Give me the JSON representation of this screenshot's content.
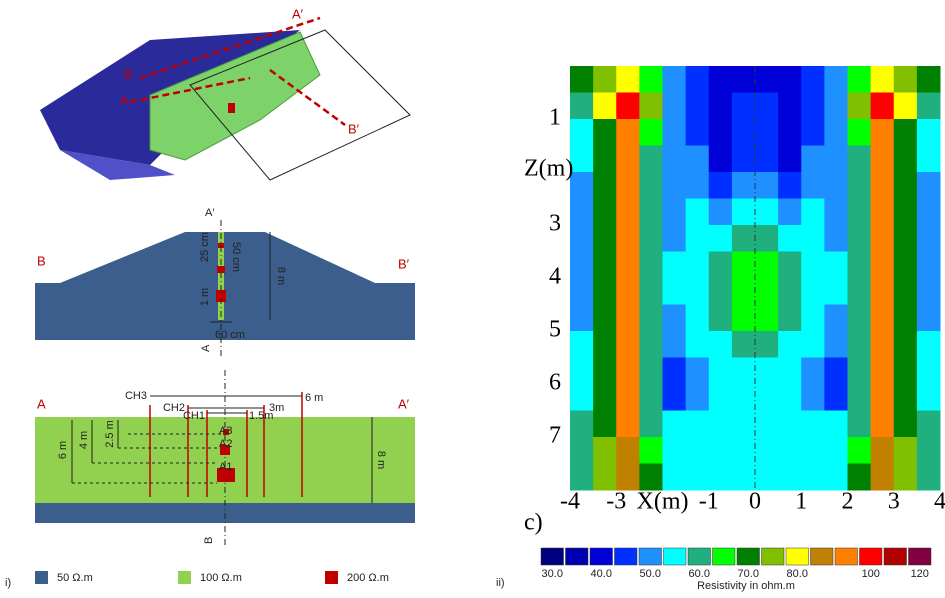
{
  "model_3d": {
    "a_prime": "A′",
    "b": "B",
    "a": "A",
    "b_prime": "B′"
  },
  "section_bb": {
    "left": "B",
    "right": "B′",
    "top": "A′",
    "bottom": "A",
    "spacing": "25 cm",
    "width": "50 cm",
    "height": "8 m",
    "step": "1 m",
    "base": "60 cm"
  },
  "section_aa": {
    "left": "A",
    "right": "A′",
    "bottom": "B",
    "channels": [
      "CH3",
      "CH2",
      "CH1"
    ],
    "spans": [
      "6 m",
      "3m",
      "1.5m"
    ],
    "depths": [
      "6 m",
      "4 m",
      "2.5 m"
    ],
    "anomalies": [
      "A3",
      "A2",
      "A1"
    ],
    "height": "8 m"
  },
  "legend": [
    {
      "color": "#3b5e8c",
      "label": "50 Ω.m"
    },
    {
      "color": "#92d050",
      "label": "100 Ω.m"
    },
    {
      "color": "#c00000",
      "label": "200 Ω.m"
    }
  ],
  "panel_labels": {
    "i": "i)",
    "ii": "ii)",
    "c": "c)"
  },
  "chart_data": {
    "type": "heatmap",
    "xlabel": "X(m)",
    "ylabel": "Z(m)",
    "x": [
      -3.75,
      -3.25,
      -2.75,
      -2.25,
      -1.75,
      -1.25,
      -0.75,
      -0.25,
      0.25,
      0.75,
      1.25,
      1.75,
      2.25,
      2.75,
      3.25,
      3.75
    ],
    "z": [
      0.25,
      0.75,
      1.25,
      1.75,
      2.25,
      2.75,
      3.25,
      3.75,
      4.25,
      4.75,
      5.25,
      5.75,
      6.25,
      6.75,
      7.25,
      7.75
    ],
    "values": [
      [
        70,
        75,
        80,
        65,
        50,
        45,
        40,
        40,
        40,
        40,
        45,
        50,
        65,
        80,
        75,
        70
      ],
      [
        60,
        80,
        100,
        75,
        50,
        45,
        40,
        45,
        45,
        40,
        45,
        50,
        75,
        100,
        80,
        60
      ],
      [
        55,
        70,
        90,
        65,
        50,
        45,
        40,
        45,
        45,
        40,
        45,
        50,
        65,
        90,
        70,
        55
      ],
      [
        55,
        70,
        90,
        60,
        50,
        50,
        40,
        45,
        45,
        40,
        50,
        50,
        60,
        90,
        70,
        55
      ],
      [
        50,
        70,
        90,
        60,
        50,
        50,
        45,
        50,
        50,
        45,
        50,
        50,
        60,
        90,
        70,
        50
      ],
      [
        50,
        70,
        90,
        60,
        50,
        55,
        50,
        55,
        55,
        50,
        55,
        50,
        60,
        90,
        70,
        50
      ],
      [
        50,
        70,
        90,
        60,
        50,
        55,
        55,
        60,
        60,
        55,
        55,
        50,
        60,
        90,
        70,
        50
      ],
      [
        50,
        70,
        90,
        60,
        55,
        55,
        60,
        65,
        65,
        60,
        55,
        55,
        60,
        90,
        70,
        50
      ],
      [
        50,
        70,
        90,
        60,
        55,
        55,
        60,
        65,
        65,
        60,
        55,
        55,
        60,
        90,
        70,
        50
      ],
      [
        50,
        70,
        90,
        60,
        50,
        55,
        60,
        65,
        65,
        60,
        55,
        50,
        60,
        90,
        70,
        50
      ],
      [
        55,
        70,
        90,
        60,
        50,
        55,
        55,
        60,
        60,
        55,
        55,
        50,
        60,
        90,
        70,
        55
      ],
      [
        55,
        70,
        90,
        60,
        45,
        50,
        55,
        55,
        55,
        55,
        50,
        45,
        60,
        90,
        70,
        55
      ],
      [
        55,
        70,
        90,
        60,
        45,
        50,
        55,
        55,
        55,
        55,
        50,
        45,
        60,
        90,
        70,
        55
      ],
      [
        60,
        70,
        90,
        60,
        55,
        55,
        55,
        55,
        55,
        55,
        55,
        55,
        60,
        90,
        70,
        60
      ],
      [
        60,
        75,
        85,
        65,
        55,
        55,
        55,
        55,
        55,
        55,
        55,
        55,
        65,
        85,
        75,
        60
      ],
      [
        60,
        75,
        85,
        70,
        55,
        55,
        55,
        55,
        55,
        55,
        55,
        55,
        70,
        85,
        75,
        60
      ]
    ],
    "xlim": [
      -4,
      4
    ],
    "ylim": [
      0,
      8
    ],
    "y_inverted": true,
    "xticks": [
      -4,
      -3,
      -1,
      0,
      1,
      2,
      3,
      4
    ],
    "yticks": [
      1,
      3,
      4,
      5,
      6,
      7
    ],
    "colorbar": {
      "label": "Resistivity in ohm.m",
      "levels": [
        30,
        35,
        40,
        45,
        50,
        55,
        60,
        65,
        70,
        75,
        80,
        85,
        90,
        100,
        110,
        120
      ],
      "colors": [
        "#000080",
        "#0000b0",
        "#0000d8",
        "#0030ff",
        "#1e90ff",
        "#00ffff",
        "#20b080",
        "#00ff00",
        "#008000",
        "#80c000",
        "#ffff00",
        "#c08000",
        "#ff8000",
        "#ff0000",
        "#b00000",
        "#800040"
      ],
      "ticks": [
        {
          "value": 30,
          "label": "30.0"
        },
        {
          "value": 40,
          "label": "40.0"
        },
        {
          "value": 50,
          "label": "50.0"
        },
        {
          "value": 60,
          "label": "60.0"
        },
        {
          "value": 70,
          "label": "70.0"
        },
        {
          "value": 80,
          "label": "80.0"
        },
        100,
        120
      ]
    }
  }
}
